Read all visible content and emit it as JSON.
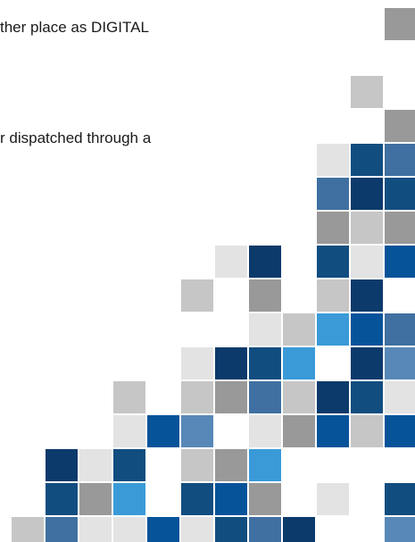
{
  "text": {
    "line1": "ther place as DIGITAL",
    "line2": "r dispatched through a"
  },
  "palette": {
    "navy": "#0b3a6b",
    "dark_blue": "#124d80",
    "mid_blue": "#06539a",
    "steel_blue": "#3f70a1",
    "slate_blue": "#5788b8",
    "sky_blue": "#3a9ad8",
    "gray": "#999999",
    "light_gray": "#c6c6c6",
    "pale_gray": "#e3e3e3"
  },
  "mosaic_tiles": [
    {
      "r": 0,
      "c": 11,
      "color": "gray"
    },
    {
      "r": 2,
      "c": 10,
      "color": "light_gray"
    },
    {
      "r": 3,
      "c": 11,
      "color": "gray"
    },
    {
      "r": 4,
      "c": 9,
      "color": "pale_gray"
    },
    {
      "r": 4,
      "c": 10,
      "color": "dark_blue"
    },
    {
      "r": 4,
      "c": 11,
      "color": "steel_blue"
    },
    {
      "r": 5,
      "c": 9,
      "color": "steel_blue"
    },
    {
      "r": 5,
      "c": 10,
      "color": "navy"
    },
    {
      "r": 5,
      "c": 11,
      "color": "dark_blue"
    },
    {
      "r": 6,
      "c": 9,
      "color": "gray"
    },
    {
      "r": 6,
      "c": 10,
      "color": "light_gray"
    },
    {
      "r": 6,
      "c": 11,
      "color": "gray"
    },
    {
      "r": 7,
      "c": 6,
      "color": "pale_gray"
    },
    {
      "r": 7,
      "c": 7,
      "color": "navy"
    },
    {
      "r": 7,
      "c": 9,
      "color": "dark_blue"
    },
    {
      "r": 7,
      "c": 10,
      "color": "pale_gray"
    },
    {
      "r": 7,
      "c": 11,
      "color": "mid_blue"
    },
    {
      "r": 8,
      "c": 5,
      "color": "light_gray"
    },
    {
      "r": 8,
      "c": 7,
      "color": "gray"
    },
    {
      "r": 8,
      "c": 9,
      "color": "light_gray"
    },
    {
      "r": 8,
      "c": 10,
      "color": "navy"
    },
    {
      "r": 9,
      "c": 7,
      "color": "pale_gray"
    },
    {
      "r": 9,
      "c": 8,
      "color": "light_gray"
    },
    {
      "r": 9,
      "c": 9,
      "color": "sky_blue"
    },
    {
      "r": 9,
      "c": 10,
      "color": "mid_blue"
    },
    {
      "r": 9,
      "c": 11,
      "color": "steel_blue"
    },
    {
      "r": 10,
      "c": 5,
      "color": "pale_gray"
    },
    {
      "r": 10,
      "c": 6,
      "color": "navy"
    },
    {
      "r": 10,
      "c": 7,
      "color": "dark_blue"
    },
    {
      "r": 10,
      "c": 8,
      "color": "sky_blue"
    },
    {
      "r": 10,
      "c": 10,
      "color": "navy"
    },
    {
      "r": 10,
      "c": 11,
      "color": "slate_blue"
    },
    {
      "r": 11,
      "c": 3,
      "color": "light_gray"
    },
    {
      "r": 11,
      "c": 5,
      "color": "light_gray"
    },
    {
      "r": 11,
      "c": 6,
      "color": "gray"
    },
    {
      "r": 11,
      "c": 7,
      "color": "steel_blue"
    },
    {
      "r": 11,
      "c": 8,
      "color": "light_gray"
    },
    {
      "r": 11,
      "c": 9,
      "color": "navy"
    },
    {
      "r": 11,
      "c": 10,
      "color": "dark_blue"
    },
    {
      "r": 11,
      "c": 11,
      "color": "pale_gray"
    },
    {
      "r": 12,
      "c": 3,
      "color": "pale_gray"
    },
    {
      "r": 12,
      "c": 4,
      "color": "mid_blue"
    },
    {
      "r": 12,
      "c": 5,
      "color": "slate_blue"
    },
    {
      "r": 12,
      "c": 7,
      "color": "pale_gray"
    },
    {
      "r": 12,
      "c": 8,
      "color": "gray"
    },
    {
      "r": 12,
      "c": 9,
      "color": "mid_blue"
    },
    {
      "r": 12,
      "c": 10,
      "color": "light_gray"
    },
    {
      "r": 12,
      "c": 11,
      "color": "mid_blue"
    },
    {
      "r": 13,
      "c": 1,
      "color": "navy"
    },
    {
      "r": 13,
      "c": 2,
      "color": "pale_gray"
    },
    {
      "r": 13,
      "c": 3,
      "color": "dark_blue"
    },
    {
      "r": 13,
      "c": 5,
      "color": "light_gray"
    },
    {
      "r": 13,
      "c": 6,
      "color": "gray"
    },
    {
      "r": 13,
      "c": 7,
      "color": "sky_blue"
    },
    {
      "r": 14,
      "c": 1,
      "color": "dark_blue"
    },
    {
      "r": 14,
      "c": 2,
      "color": "gray"
    },
    {
      "r": 14,
      "c": 3,
      "color": "sky_blue"
    },
    {
      "r": 14,
      "c": 5,
      "color": "dark_blue"
    },
    {
      "r": 14,
      "c": 6,
      "color": "mid_blue"
    },
    {
      "r": 14,
      "c": 7,
      "color": "gray"
    },
    {
      "r": 14,
      "c": 9,
      "color": "pale_gray"
    },
    {
      "r": 14,
      "c": 11,
      "color": "dark_blue"
    },
    {
      "r": 15,
      "c": 0,
      "color": "light_gray"
    },
    {
      "r": 15,
      "c": 1,
      "color": "steel_blue"
    },
    {
      "r": 15,
      "c": 2,
      "color": "pale_gray"
    },
    {
      "r": 15,
      "c": 3,
      "color": "pale_gray"
    },
    {
      "r": 15,
      "c": 4,
      "color": "mid_blue"
    },
    {
      "r": 15,
      "c": 5,
      "color": "pale_gray"
    },
    {
      "r": 15,
      "c": 6,
      "color": "dark_blue"
    },
    {
      "r": 15,
      "c": 7,
      "color": "steel_blue"
    },
    {
      "r": 15,
      "c": 8,
      "color": "navy"
    },
    {
      "r": 15,
      "c": 11,
      "color": "slate_blue"
    }
  ]
}
